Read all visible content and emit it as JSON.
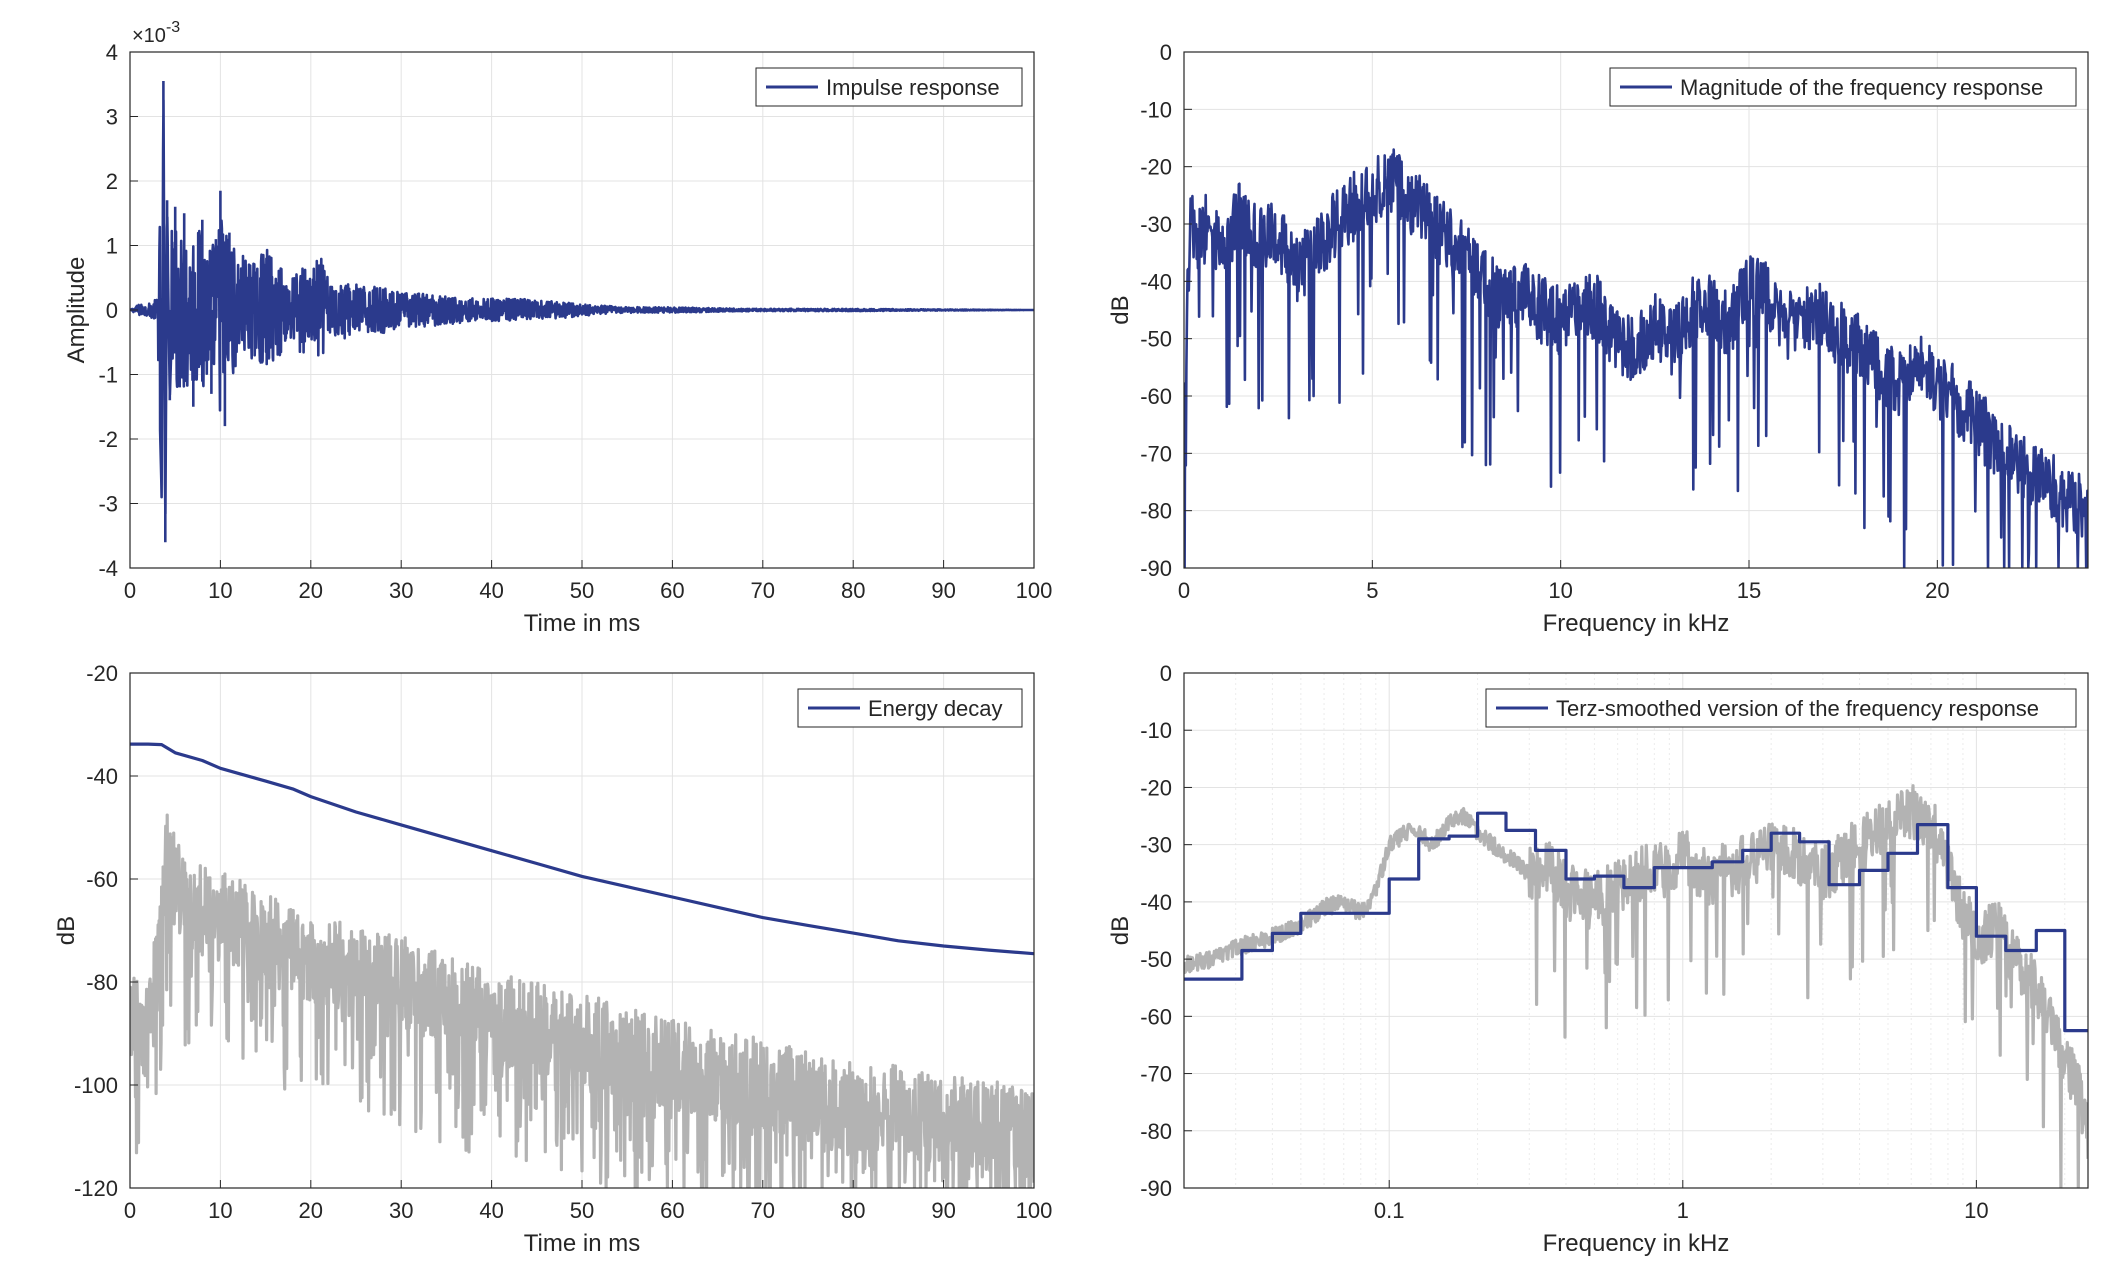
{
  "colors": {
    "primary": "#2b3a8c",
    "secondary": "#b3b3b3",
    "grid": "#e3e3e3",
    "axis": "#262626"
  },
  "chart_data": [
    {
      "id": "impulse",
      "type": "line",
      "title": "",
      "xlabel": "Time in ms",
      "ylabel": "Amplitude",
      "xlim": [
        0,
        100
      ],
      "ylim": [
        -4,
        4
      ],
      "xticks": [
        0,
        10,
        20,
        30,
        40,
        50,
        60,
        70,
        80,
        90,
        100
      ],
      "yticks": [
        -4,
        -3,
        -2,
        -1,
        0,
        1,
        2,
        3,
        4
      ],
      "y_exponent": "×10-3",
      "grid": true,
      "legend": "top-right",
      "series": [
        {
          "name": "Impulse response",
          "color": "#2b3a8c",
          "x": [
            0,
            1,
            2,
            3,
            3.5,
            3.7,
            3.9,
            4.1,
            4.4,
            5,
            5.5,
            6,
            7,
            8,
            9,
            9.5,
            10,
            10.5,
            11,
            12,
            13,
            14,
            15,
            16,
            17,
            18,
            19,
            20,
            21,
            22,
            24,
            26,
            28,
            30,
            32,
            35,
            38,
            40,
            43,
            46,
            48,
            50,
            55,
            60,
            65,
            70,
            80,
            90,
            100
          ],
          "y": [
            0,
            0.1,
            -0.1,
            0.2,
            -2.9,
            3.55,
            -3.6,
            1.7,
            -1.4,
            1.6,
            -1.2,
            1.5,
            -1.5,
            1.4,
            -1.3,
            1.1,
            1.85,
            -1.8,
            1.2,
            -1.0,
            0.9,
            -0.8,
            1.1,
            -0.9,
            0.7,
            -0.6,
            0.8,
            0.6,
            -1.0,
            0.5,
            -0.5,
            0.4,
            -0.4,
            0.3,
            -0.3,
            0.25,
            -0.2,
            0.2,
            -0.2,
            0.15,
            -0.15,
            0.1,
            -0.05,
            0.05,
            -0.03,
            0.02,
            -0.02,
            0.01,
            0
          ]
        }
      ]
    },
    {
      "id": "magnitude",
      "type": "line",
      "title": "",
      "xlabel": "Frequency in kHz",
      "ylabel": "dB",
      "xlim": [
        0,
        24
      ],
      "ylim": [
        -90,
        0
      ],
      "xticks": [
        0,
        5,
        10,
        15,
        20
      ],
      "yticks": [
        0,
        -10,
        -20,
        -30,
        -40,
        -50,
        -60,
        -70,
        -80,
        -90
      ],
      "grid": true,
      "legend": "top-right",
      "series": [
        {
          "name": "Magnitude of the frequency response",
          "color": "#2b3a8c",
          "x": [
            0,
            0.1,
            0.2,
            0.3,
            0.6,
            1.0,
            1.5,
            2.0,
            2.5,
            3.0,
            3.5,
            4.0,
            4.5,
            5.0,
            5.5,
            6.0,
            6.5,
            7.0,
            7.5,
            8.0,
            8.5,
            9.0,
            9.5,
            10.0,
            10.5,
            11.0,
            11.5,
            12.0,
            12.5,
            13.0,
            13.5,
            14.0,
            14.5,
            15.0,
            15.5,
            16.0,
            16.5,
            17.0,
            17.5,
            18.0,
            18.5,
            19.0,
            19.5,
            20.0,
            20.5,
            21.0,
            21.5,
            22.0,
            22.5,
            23.0,
            23.5,
            24.0
          ],
          "y": [
            -75,
            -40,
            -25,
            -35,
            -30,
            -35,
            -28,
            -33,
            -32,
            -38,
            -35,
            -30,
            -27,
            -25,
            -22,
            -26,
            -29,
            -33,
            -36,
            -40,
            -44,
            -42,
            -45,
            -47,
            -43,
            -45,
            -50,
            -52,
            -48,
            -51,
            -45,
            -45,
            -48,
            -40,
            -43,
            -48,
            -47,
            -46,
            -50,
            -52,
            -55,
            -58,
            -54,
            -58,
            -61,
            -64,
            -68,
            -70,
            -74,
            -75,
            -78,
            -80
          ]
        }
      ]
    },
    {
      "id": "energy",
      "type": "line",
      "title": "",
      "xlabel": "Time in ms",
      "ylabel": "dB",
      "xlim": [
        0,
        100
      ],
      "ylim": [
        -120,
        -20
      ],
      "xticks": [
        0,
        10,
        20,
        30,
        40,
        50,
        60,
        70,
        80,
        90,
        100
      ],
      "yticks": [
        -20,
        -40,
        -60,
        -80,
        -100,
        -120
      ],
      "grid": true,
      "legend": "top-right",
      "series": [
        {
          "name": "Energy decay",
          "color": "#2b3a8c",
          "x": [
            0,
            2,
            3.5,
            5,
            8,
            10,
            12,
            15,
            18,
            20,
            25,
            30,
            35,
            40,
            45,
            50,
            55,
            60,
            65,
            70,
            75,
            80,
            85,
            90,
            95,
            100
          ],
          "y": [
            -33.8,
            -33.8,
            -33.9,
            -35.5,
            -37,
            -38.5,
            -39.5,
            -41,
            -42.5,
            -44,
            -47,
            -49.5,
            -52,
            -54.5,
            -57,
            -59.5,
            -61.5,
            -63.5,
            -65.5,
            -67.5,
            -69,
            -70.5,
            -72,
            -73,
            -73.8,
            -74.5
          ]
        },
        {
          "color": "#b3b3b3",
          "x": [
            0,
            2,
            3.5,
            4,
            6,
            10,
            15,
            20,
            25,
            30,
            35,
            40,
            45,
            50,
            55,
            60,
            65,
            70,
            75,
            80,
            85,
            90,
            95,
            100
          ],
          "y": [
            -85,
            -90,
            -70,
            -55,
            -65,
            -67,
            -72,
            -75,
            -78,
            -80,
            -84,
            -87,
            -89,
            -91,
            -94,
            -96,
            -98,
            -100,
            -102,
            -104,
            -105,
            -107,
            -108,
            -110
          ]
        }
      ]
    },
    {
      "id": "terz",
      "type": "line",
      "title": "",
      "xlabel": "Frequency in kHz",
      "ylabel": "dB",
      "xscale": "log",
      "xlim": [
        0.02,
        24
      ],
      "ylim": [
        -90,
        0
      ],
      "xticks": [
        0.1,
        1,
        10
      ],
      "xticklabels": [
        "0.1",
        "1",
        "10"
      ],
      "yticks": [
        0,
        -10,
        -20,
        -30,
        -40,
        -50,
        -60,
        -70,
        -80,
        -90
      ],
      "grid": true,
      "legend": "top-right",
      "series": [
        {
          "name": "Terz-smoothed version of the frequency response",
          "color": "#2b3a8c",
          "step": true,
          "x": [
            0.02,
            0.0315,
            0.04,
            0.05,
            0.08,
            0.1,
            0.126,
            0.16,
            0.2,
            0.25,
            0.315,
            0.4,
            0.5,
            0.63,
            0.8,
            1.0,
            1.26,
            1.6,
            2.0,
            2.5,
            3.15,
            4.0,
            5.0,
            6.3,
            7.0,
            8.0,
            10.0,
            12.6,
            16.0,
            20.0,
            24.0
          ],
          "y": [
            -53.5,
            -48.5,
            -45.5,
            -42,
            -42,
            -36,
            -29,
            -28.5,
            -24.5,
            -27.5,
            -31,
            -36,
            -35.5,
            -37.5,
            -34,
            -34,
            -33,
            -31,
            -28,
            -29.5,
            -37,
            -34.5,
            -31.5,
            -26.5,
            -26.5,
            -37.5,
            -46,
            -48.5,
            -45,
            -62.5,
            -62.5
          ]
        },
        {
          "color": "#b3b3b3",
          "x": [
            0.02,
            0.025,
            0.03,
            0.04,
            0.05,
            0.06,
            0.07,
            0.08,
            0.09,
            0.1,
            0.12,
            0.14,
            0.16,
            0.18,
            0.2,
            0.25,
            0.3,
            0.35,
            0.4,
            0.5,
            0.6,
            0.7,
            0.8,
            0.9,
            1.0,
            1.2,
            1.5,
            2.0,
            2.5,
            3.0,
            4.0,
            5.0,
            6.0,
            7.0,
            8.0,
            9.0,
            10.0,
            12.0,
            14.0,
            16.0,
            18.0,
            20.0,
            22.0,
            24.0
          ],
          "y": [
            -51,
            -50,
            -48,
            -46,
            -44,
            -41,
            -40,
            -42,
            -38,
            -30,
            -27,
            -30,
            -26,
            -25,
            -28,
            -32,
            -35,
            -34,
            -38,
            -40,
            -37,
            -36,
            -33,
            -35,
            -32,
            -36,
            -34,
            -30,
            -32,
            -35,
            -30,
            -27,
            -24,
            -26,
            -35,
            -42,
            -46,
            -45,
            -52,
            -55,
            -60,
            -68,
            -72,
            -80
          ]
        }
      ]
    }
  ]
}
